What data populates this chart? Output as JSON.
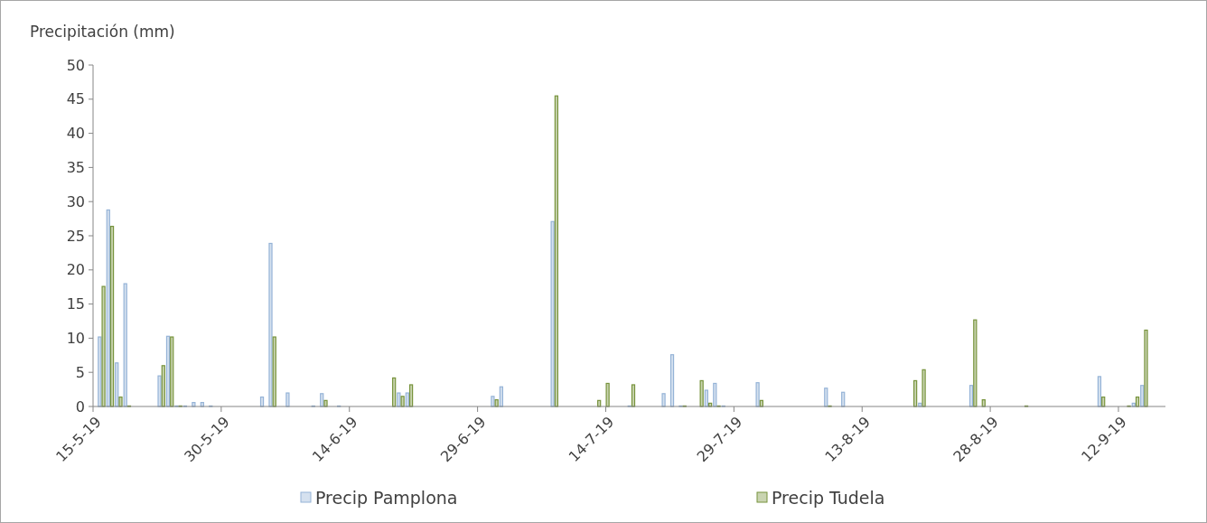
{
  "chart_data": {
    "type": "bar",
    "ylabel": "Precipitación (mm)",
    "x": [
      "2019-05-16",
      "2019-05-17",
      "2019-05-18",
      "2019-05-19",
      "2019-05-23",
      "2019-05-24",
      "2019-05-25",
      "2019-05-26",
      "2019-05-27",
      "2019-05-28",
      "2019-05-29",
      "2019-06-04",
      "2019-06-05",
      "2019-06-07",
      "2019-06-10",
      "2019-06-11",
      "2019-06-13",
      "2019-06-19",
      "2019-06-20",
      "2019-06-21",
      "2019-07-01",
      "2019-07-02",
      "2019-07-08",
      "2019-07-13",
      "2019-07-14",
      "2019-07-17",
      "2019-07-21",
      "2019-07-22",
      "2019-07-23",
      "2019-07-25",
      "2019-07-26",
      "2019-07-27",
      "2019-07-28",
      "2019-08-01",
      "2019-08-09",
      "2019-08-11",
      "2019-08-19",
      "2019-08-20",
      "2019-08-26",
      "2019-08-27",
      "2019-09-01",
      "2019-09-10",
      "2019-09-13",
      "2019-09-14",
      "2019-09-15"
    ],
    "series": [
      {
        "name": "Precip Pamplona",
        "color": "#95b3d7",
        "values": [
          10.1,
          28.7,
          6.3,
          17.9,
          4.4,
          10.2,
          0,
          0,
          0.5,
          0.5,
          0,
          1.3,
          23.8,
          1.9,
          0,
          1.8,
          0,
          null,
          1.9,
          1.9,
          1.4,
          2.8,
          27.0,
          null,
          null,
          0,
          1.8,
          7.5,
          0,
          null,
          2.3,
          3.3,
          0,
          3.4,
          2.6,
          2.0,
          null,
          0.4,
          3.0,
          null,
          null,
          4.3,
          null,
          0.4,
          3.0
        ]
      },
      {
        "name": "Precip Tudela",
        "color": "#77933c",
        "values": [
          17.5,
          26.3,
          1.3,
          0,
          5.9,
          10.1,
          0,
          null,
          null,
          null,
          null,
          null,
          10.1,
          null,
          null,
          0.8,
          null,
          4.1,
          1.4,
          3.1,
          0.9,
          null,
          45.4,
          0.8,
          3.3,
          3.1,
          null,
          null,
          0,
          3.7,
          0.4,
          0,
          null,
          0.8,
          0,
          null,
          3.7,
          5.3,
          12.6,
          0.9,
          0,
          1.3,
          0,
          1.3,
          11.1
        ]
      }
    ],
    "xlim": [
      "2019-05-15",
      "2019-09-17T12:00"
    ],
    "xticks": [
      {
        "value": "2019-05-15",
        "label": "15-5-19"
      },
      {
        "value": "2019-05-30",
        "label": "30-5-19"
      },
      {
        "value": "2019-06-14",
        "label": "14-6-19"
      },
      {
        "value": "2019-06-29",
        "label": "29-6-19"
      },
      {
        "value": "2019-07-14",
        "label": "14-7-19"
      },
      {
        "value": "2019-07-29",
        "label": "29-7-19"
      },
      {
        "value": "2019-08-13",
        "label": "13-8-19"
      },
      {
        "value": "2019-08-28",
        "label": "28-8-19"
      },
      {
        "value": "2019-09-12",
        "label": "12-9-19"
      }
    ],
    "ylim": [
      0,
      50
    ],
    "yticks": [
      0,
      5,
      10,
      15,
      20,
      25,
      30,
      35,
      40,
      45,
      50
    ],
    "grid": false,
    "legend": "bottom"
  }
}
